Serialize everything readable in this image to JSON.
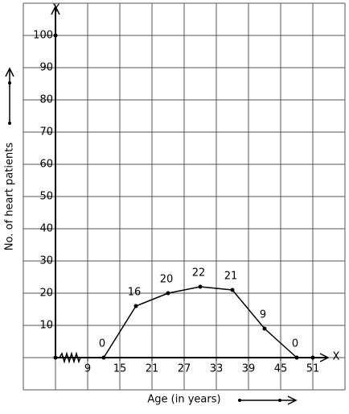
{
  "chart_data": {
    "type": "line",
    "x_label": "Age (in years)",
    "y_label": "No. of heart patients",
    "x_axis_name": "X",
    "y_axis_name": "Y",
    "x": [
      12,
      18,
      24,
      30,
      36,
      42,
      48
    ],
    "series": [
      {
        "color": "#000000",
        "values": [
          0,
          16,
          20,
          22,
          21,
          9,
          0
        ]
      }
    ],
    "xlim": [
      -3,
      57
    ],
    "ylim": [
      -10,
      110
    ],
    "xticks": [
      9,
      15,
      21,
      27,
      33,
      39,
      45,
      51
    ],
    "yticks": [
      10,
      20,
      30,
      40,
      50,
      60,
      70,
      80,
      90,
      100
    ],
    "grid": true
  }
}
